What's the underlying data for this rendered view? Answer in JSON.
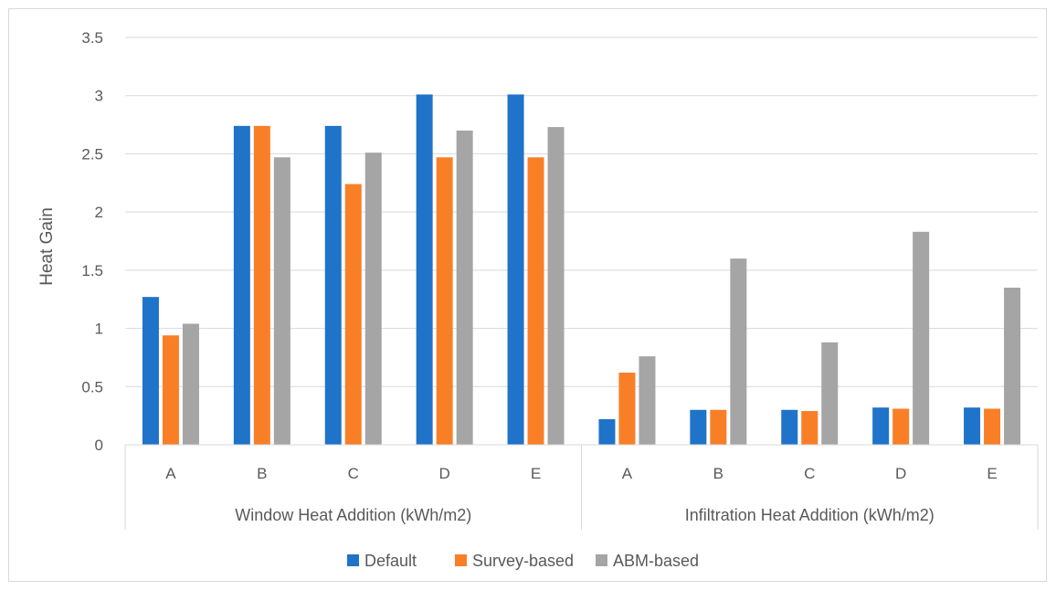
{
  "chart_data": {
    "type": "bar",
    "ylabel": "Heat Gain",
    "ylim": [
      0,
      3.5
    ],
    "yticks": [
      0,
      0.5,
      1,
      1.5,
      2,
      2.5,
      3,
      3.5
    ],
    "ytick_labels": [
      "0",
      "0.5",
      "1",
      "1.5",
      "2",
      "2.5",
      "3",
      "3.5"
    ],
    "grid": true,
    "legend_position": "bottom",
    "groups": [
      {
        "label": "Window Heat Addition (kWh/m2)",
        "categories": [
          "A",
          "B",
          "C",
          "D",
          "E"
        ]
      },
      {
        "label": "Infiltration Heat Addition (kWh/m2)",
        "categories": [
          "A",
          "B",
          "C",
          "D",
          "E"
        ]
      }
    ],
    "series": [
      {
        "name": "Default",
        "color": "#1f73c9",
        "values": [
          1.27,
          2.74,
          2.74,
          3.01,
          3.01,
          0.22,
          0.3,
          0.3,
          0.32,
          0.32
        ]
      },
      {
        "name": "Survey-based",
        "color": "#f97f27",
        "values": [
          0.94,
          2.74,
          2.24,
          2.47,
          2.47,
          0.62,
          0.3,
          0.29,
          0.31,
          0.31
        ]
      },
      {
        "name": "ABM-based",
        "color": "#a5a5a5",
        "values": [
          1.04,
          2.47,
          2.51,
          2.7,
          2.73,
          0.76,
          1.6,
          0.88,
          1.83,
          1.35
        ]
      }
    ]
  }
}
